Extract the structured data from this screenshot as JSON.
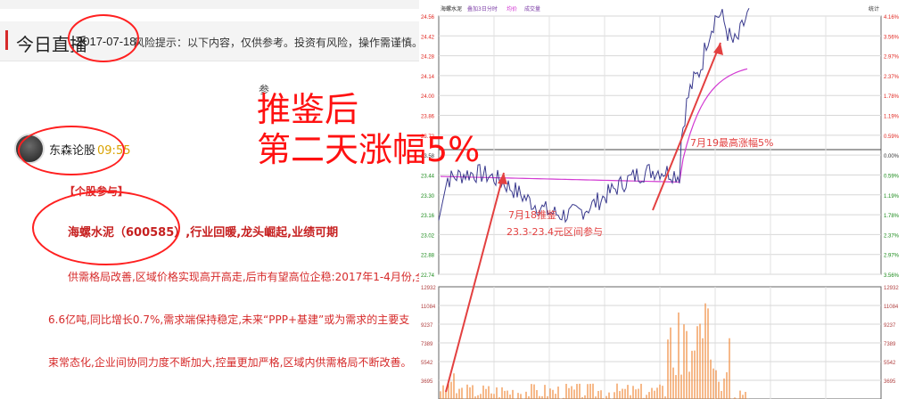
{
  "header": {
    "title": "今日直播",
    "date": "2017-07-18",
    "risk_notice": "风险提示：以下内容，仅供参考。投资有风险，操作需谨慎。"
  },
  "sub_tab": "参",
  "author": {
    "name": "东森论股",
    "time": "09:55"
  },
  "post": {
    "tag": "【个股参与】",
    "stock_line": "海螺水泥（600585）,行业回暖,龙头崛起,业绩可期",
    "paragraphs": [
      "供需格局改善,区域价格实现高开高走,后市有望高位企稳:2017年1-4月份,全",
      "6.6亿吨,同比增长0.7%,需求端保持稳定,未来“PPP+基建”或为需求的主要支",
      "束常态化,企业间协同力度不断加大,控量更加严格,区域内供需格局不断改善。"
    ]
  },
  "overlay": {
    "line1": "推鉴后",
    "line2": "第二天涨幅5%"
  },
  "chart": {
    "legend": [
      "海螺水泥",
      "叠加3日分时",
      "均价",
      "成交量"
    ],
    "legend_colors": [
      "#222222",
      "#7a3aa5",
      "#d02ad0",
      "#7a3aa5"
    ],
    "top_right_label": "统计",
    "price_ticks": [
      "24.56",
      "24.42",
      "24.28",
      "24.14",
      "24.00",
      "23.86",
      "23.72",
      "23.58",
      "23.44",
      "23.30",
      "23.16",
      "23.02",
      "22.88",
      "22.74"
    ],
    "pct_ticks": [
      "4.16%",
      "3.56%",
      "2.97%",
      "2.37%",
      "1.78%",
      "1.19%",
      "0.59%",
      "0.00%",
      "0.59%",
      "1.19%",
      "1.78%",
      "2.37%",
      "2.97%",
      "3.56%"
    ],
    "volume_ticks": [
      "12932",
      "11084",
      "9237",
      "7389",
      "5542",
      "3695"
    ],
    "annotation1_line1": "7月18推鉴",
    "annotation1_line2": "23.3-23.4元区间参与",
    "annotation2": "7月19最高涨幅5%",
    "colors": {
      "up": "#e0251f",
      "down": "#1a8a1a",
      "price": "#3a3a8e",
      "avg": "#d23ad2",
      "volume": "#f08a3c",
      "annotation": "#e34040"
    }
  }
}
